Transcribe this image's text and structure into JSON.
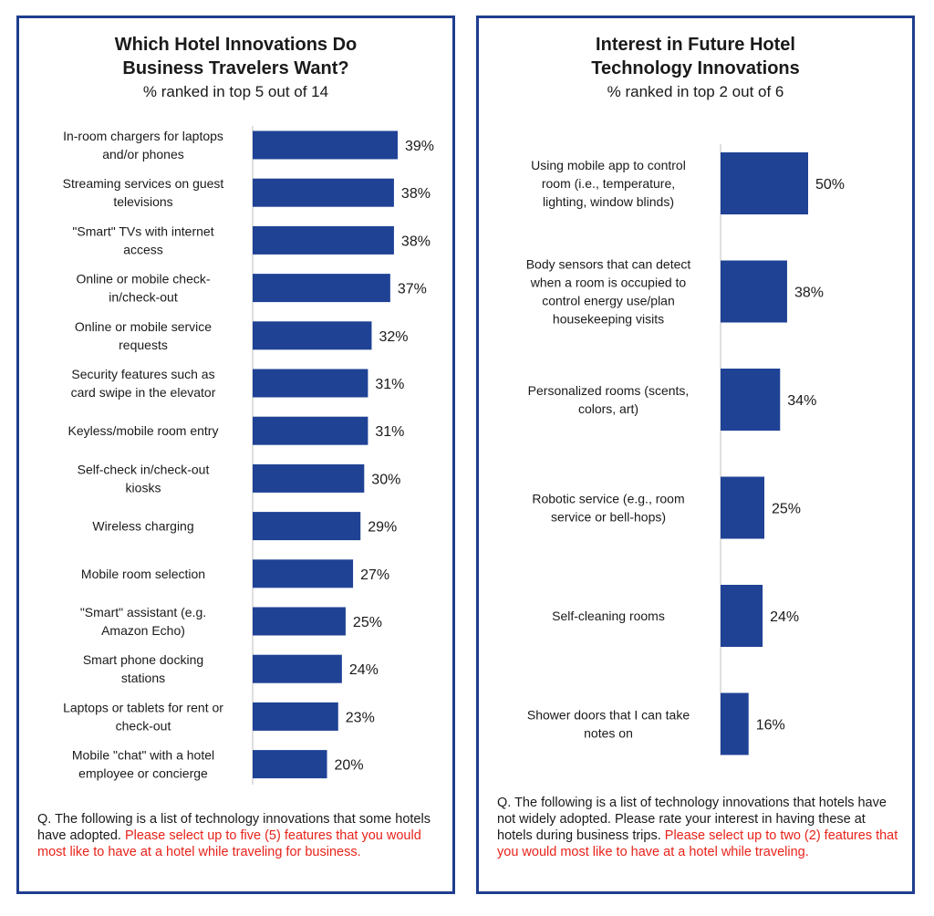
{
  "colors": {
    "bar": "#1f4295",
    "frame": "#1f3d8f",
    "highlight": "#e8231a",
    "axis": "#bfbfbf"
  },
  "chart_data": [
    {
      "type": "bar",
      "orientation": "horizontal",
      "title": "Which Hotel Innovations Do Business Travelers Want?",
      "title_lines": [
        "Which Hotel Innovations Do",
        "Business Travelers Want?"
      ],
      "subtitle": "% ranked in top 5 out of 14",
      "categories": [
        [
          "In-room chargers for laptops",
          "and/or phones"
        ],
        [
          "Streaming services on guest",
          "televisions"
        ],
        [
          "\"Smart\" TVs with internet",
          "access"
        ],
        [
          "Online or mobile check-",
          "in/check-out"
        ],
        [
          "Online or mobile service",
          "requests"
        ],
        [
          "Security features such as",
          "card swipe in the elevator"
        ],
        [
          "Keyless/mobile room entry"
        ],
        [
          "Self-check in/check-out",
          "kiosks"
        ],
        [
          "Wireless charging"
        ],
        [
          "Mobile room selection"
        ],
        [
          "\"Smart\" assistant (e.g.",
          "Amazon Echo)"
        ],
        [
          "Smart phone docking",
          "stations"
        ],
        [
          "Laptops or tablets for rent or",
          "check-out"
        ],
        [
          "Mobile \"chat\" with a hotel",
          "employee or concierge"
        ]
      ],
      "values": [
        39,
        38,
        38,
        37,
        32,
        31,
        31,
        30,
        29,
        27,
        25,
        24,
        23,
        20
      ],
      "labels": [
        "39%",
        "38%",
        "38%",
        "37%",
        "32%",
        "31%",
        "31%",
        "30%",
        "29%",
        "27%",
        "25%",
        "24%",
        "23%",
        "20%"
      ],
      "xlim": [
        0,
        39
      ],
      "grid": false
    },
    {
      "type": "bar",
      "orientation": "horizontal",
      "title": "Interest in Future Hotel Technology Innovations",
      "title_lines": [
        "Interest in Future Hotel",
        "Technology Innovations"
      ],
      "subtitle": "% ranked in top 2 out of 6",
      "categories": [
        [
          "Using mobile app to control",
          "room (i.e., temperature,",
          "lighting, window blinds)"
        ],
        [
          "Body sensors that can detect",
          "when a room is occupied to",
          "control energy use/plan",
          "housekeeping visits"
        ],
        [
          "Personalized rooms (scents,",
          "colors, art)"
        ],
        [
          "Robotic service (e.g., room",
          "service or bell-hops)"
        ],
        [
          "Self-cleaning rooms"
        ],
        [
          "Shower doors that I can take",
          "notes on"
        ]
      ],
      "values": [
        50,
        38,
        34,
        25,
        24,
        16
      ],
      "labels": [
        "50%",
        "38%",
        "34%",
        "25%",
        "24%",
        "16%"
      ],
      "xlim": [
        0,
        50
      ],
      "grid": false
    }
  ],
  "footnotes": [
    {
      "plain": "Q. The following is a list of technology innovations that some hotels have adopted.",
      "highlight": "Please select up to five (5) features that you would most like to have at a hotel while traveling for business."
    },
    {
      "plain": "Q. The following is a list of technology innovations that hotels have not widely adopted. Please rate your interest in having these at hotels during business trips.",
      "highlight": "Please select up to two (2) features that you would most like to have at a hotel while traveling."
    }
  ]
}
